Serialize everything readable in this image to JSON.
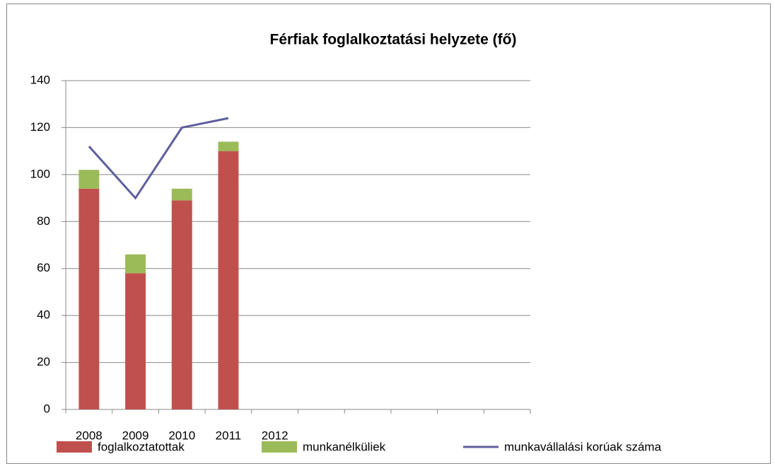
{
  "chart_data": {
    "type": "bar",
    "title": "Férfiak foglalkoztatási helyzete (fő)",
    "stacked": true,
    "categories": [
      "2008",
      "2009",
      "2010",
      "2011",
      "2012",
      null,
      null,
      null,
      null,
      null
    ],
    "series": [
      {
        "name": "foglalkoztatottak",
        "type": "bar",
        "color": "#c0504d",
        "values": [
          94,
          58,
          89,
          110,
          null,
          null,
          null,
          null,
          null,
          null
        ]
      },
      {
        "name": "munkanélküliek",
        "type": "bar",
        "color": "#9bbb59",
        "values": [
          8,
          8,
          5,
          4,
          null,
          null,
          null,
          null,
          null,
          null
        ]
      },
      {
        "name": "munkavállalási korúak száma",
        "type": "line",
        "color": "#5e5e9e",
        "values": [
          112,
          90,
          120,
          124,
          null,
          null,
          null,
          null,
          null,
          null
        ]
      }
    ],
    "ylim": [
      0,
      140
    ],
    "yticks": [
      0,
      20,
      40,
      60,
      80,
      100,
      120,
      140
    ],
    "grid": true,
    "legend": "bottom"
  }
}
